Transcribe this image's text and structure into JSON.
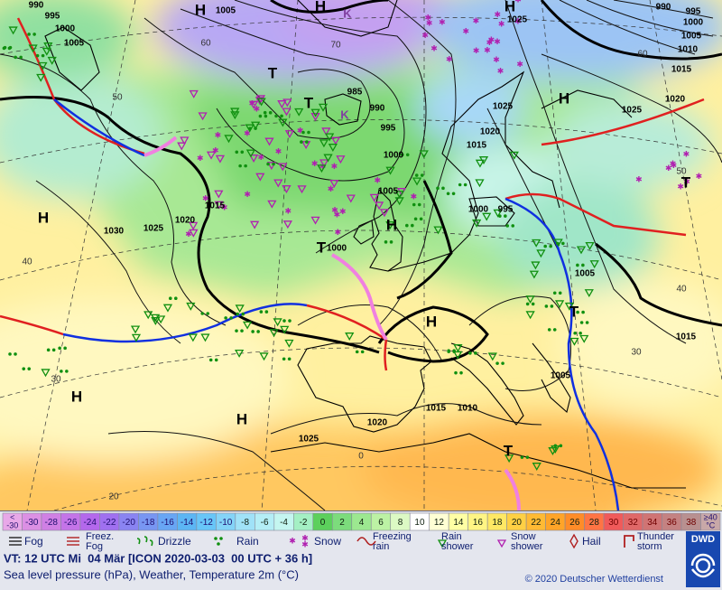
{
  "map": {
    "pressure_centers": [
      "H",
      "H",
      "K",
      "H",
      "T",
      "T",
      "K",
      "H",
      "T",
      "H",
      "H",
      "T",
      "H",
      "H",
      "H",
      "T",
      "T"
    ],
    "isobar_labels": [
      "990",
      "995",
      "1000",
      "1005",
      "1005",
      "985",
      "990",
      "995",
      "1000",
      "1005",
      "1000",
      "1015",
      "1020",
      "1025",
      "1030",
      "1025",
      "1020",
      "1015",
      "1000",
      "995",
      "1005",
      "1015",
      "1020",
      "1025",
      "1015",
      "1010",
      "1005",
      "1025",
      "1020",
      "1015",
      "1010",
      "1005",
      "1000",
      "995",
      "990",
      "1025"
    ],
    "latitude_labels": [
      "60",
      "70",
      "50",
      "40",
      "30",
      "20",
      "0",
      "50",
      "40",
      "30",
      "60"
    ]
  },
  "legend": {
    "scale_low": {
      "label": [
        "<",
        "-30"
      ],
      "color": "#e8a8e8"
    },
    "scale": [
      {
        "label": "-30",
        "color": "#dc90e4"
      },
      {
        "label": "-28",
        "color": "#d080e4"
      },
      {
        "label": "-26",
        "color": "#c474e8"
      },
      {
        "label": "-24",
        "color": "#b468ec"
      },
      {
        "label": "-22",
        "color": "#a070f0"
      },
      {
        "label": "-20",
        "color": "#8a84f2"
      },
      {
        "label": "-18",
        "color": "#7896f2"
      },
      {
        "label": "-16",
        "color": "#68a6f4"
      },
      {
        "label": "-14",
        "color": "#5cb6f4"
      },
      {
        "label": "-12",
        "color": "#68c6f8"
      },
      {
        "label": "-10",
        "color": "#84d4f8"
      },
      {
        "label": "-8",
        "color": "#a0e2f8"
      },
      {
        "label": "-6",
        "color": "#b4eef6"
      },
      {
        "label": "-4",
        "color": "#c4f6f0"
      },
      {
        "label": "-2",
        "color": "#a4f0c4"
      },
      {
        "label": "0",
        "color": "#5cd05c"
      },
      {
        "label": "2",
        "color": "#7cdc7c"
      },
      {
        "label": "4",
        "color": "#9ce890"
      },
      {
        "label": "6",
        "color": "#bcf2a4"
      },
      {
        "label": "8",
        "color": "#dcfac4"
      },
      {
        "label": "10",
        "color": "#ffffff"
      },
      {
        "label": "12",
        "color": "#ffffd4"
      },
      {
        "label": "14",
        "color": "#ffffa4"
      },
      {
        "label": "16",
        "color": "#fff584"
      },
      {
        "label": "18",
        "color": "#ffe864"
      },
      {
        "label": "20",
        "color": "#ffd044"
      },
      {
        "label": "22",
        "color": "#ffba34"
      },
      {
        "label": "24",
        "color": "#ffa428"
      },
      {
        "label": "26",
        "color": "#ff8c28"
      },
      {
        "label": "28",
        "color": "#ff7444"
      },
      {
        "label": "30",
        "color": "#f05a5a"
      },
      {
        "label": "32",
        "color": "#e06868"
      },
      {
        "label": "34",
        "color": "#d07474"
      },
      {
        "label": "36",
        "color": "#c48282"
      },
      {
        "label": "38",
        "color": "#b89090"
      }
    ],
    "scale_high": {
      "label": [
        "≥40",
        "°C"
      ],
      "color": "#c8a8a8"
    },
    "weather": [
      {
        "label": [
          "Fog"
        ]
      },
      {
        "label": [
          "Freez.",
          "Fog"
        ]
      },
      {
        "label": [
          "Drizzle"
        ]
      },
      {
        "label": [
          "Rain"
        ]
      },
      {
        "label": [
          "Snow"
        ]
      },
      {
        "label": [
          "Freezing",
          "rain"
        ]
      },
      {
        "label": [
          "Rain",
          "shower"
        ]
      },
      {
        "label": [
          "Snow",
          "shower"
        ]
      },
      {
        "label": [
          "Hail"
        ]
      },
      {
        "label": [
          "Thunder",
          "storm"
        ]
      }
    ]
  },
  "footer": {
    "valid_time": "VT: 12 UTC Mi  04 Mär [ICON 2020-03-03  00 UTC + 36 h]",
    "description": "Sea level pressure (hPa), Weather, Temperature 2m (°C)",
    "copyright": "© 2020 Deutscher Wetterdienst",
    "logo": "DWD"
  }
}
